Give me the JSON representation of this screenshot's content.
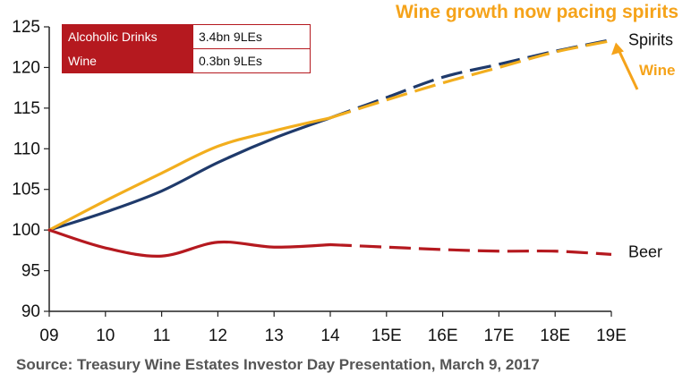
{
  "headline": "Wine growth now pacing spirits",
  "source": "Source: Treasury Wine Estates Investor Day Presentation, March 9, 2017",
  "legend_table": [
    {
      "name": "Alcoholic Drinks",
      "value": "3.4bn 9LEs"
    },
    {
      "name": "Wine",
      "value": "0.3bn 9LEs"
    }
  ],
  "colors": {
    "spirits": "#1f3a6b",
    "wine": "#f2ae1e",
    "beer": "#b5191f",
    "headline": "#f5a31a",
    "axis": "#222222"
  },
  "chart_data": {
    "type": "line",
    "x": [
      "09",
      "10",
      "11",
      "12",
      "13",
      "14",
      "15E",
      "16E",
      "17E",
      "18E",
      "19E"
    ],
    "ylim": [
      90,
      125
    ],
    "yticks": [
      90,
      95,
      100,
      105,
      110,
      115,
      120,
      125
    ],
    "grid": false,
    "projection_starts_at": "14",
    "series": [
      {
        "name": "Spirits",
        "color": "#1f3a6b",
        "values": [
          100,
          102.2,
          104.8,
          108.3,
          111.3,
          113.8,
          116.3,
          118.8,
          120.4,
          122.0,
          123.4
        ]
      },
      {
        "name": "Wine",
        "color": "#f2ae1e",
        "values": [
          100,
          103.6,
          107.0,
          110.3,
          112.2,
          113.8,
          116.0,
          118.1,
          120.0,
          121.9,
          123.3
        ]
      },
      {
        "name": "Beer",
        "color": "#b5191f",
        "values": [
          100,
          97.8,
          96.8,
          98.5,
          97.9,
          98.2,
          97.9,
          97.6,
          97.4,
          97.4,
          97.0
        ]
      }
    ],
    "annotations": [
      "Spirits",
      "Wine",
      "Beer"
    ]
  }
}
